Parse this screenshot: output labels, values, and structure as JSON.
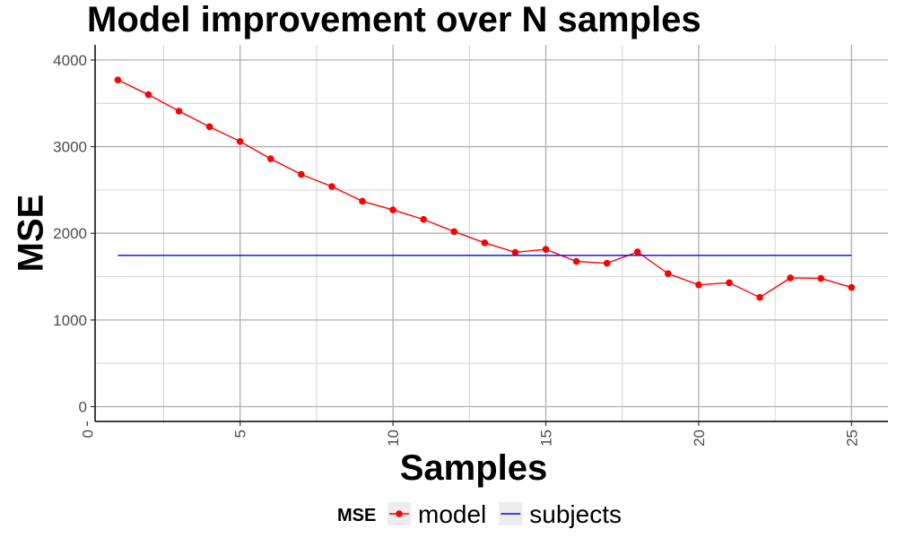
{
  "chart_data": {
    "type": "line",
    "title": "Model improvement over N samples",
    "xlabel": "Samples",
    "ylabel": "MSE",
    "xlim": [
      0,
      26
    ],
    "ylim": [
      -150,
      4200
    ],
    "x_ticks": [
      0,
      5,
      10,
      15,
      20,
      25
    ],
    "y_ticks": [
      0,
      1000,
      2000,
      3000,
      4000
    ],
    "grid": true,
    "legend": {
      "title": "MSE",
      "position": "bottom"
    },
    "x": [
      1,
      2,
      3,
      4,
      5,
      6,
      7,
      8,
      9,
      10,
      11,
      12,
      13,
      14,
      15,
      16,
      17,
      18,
      19,
      20,
      21,
      22,
      23,
      24,
      25
    ],
    "series": [
      {
        "name": "model",
        "color": "#ff0000",
        "markers": true,
        "values": [
          3770,
          3600,
          3410,
          3230,
          3060,
          2860,
          2680,
          2540,
          2370,
          2270,
          2160,
          2020,
          1890,
          1780,
          1815,
          1675,
          1655,
          1785,
          1535,
          1405,
          1430,
          1260,
          1485,
          1480,
          1375
        ]
      },
      {
        "name": "subjects",
        "color": "#0000ff",
        "markers": false,
        "values": [
          1745,
          1745,
          1745,
          1745,
          1745,
          1745,
          1745,
          1745,
          1745,
          1745,
          1745,
          1745,
          1745,
          1745,
          1745,
          1745,
          1745,
          1745,
          1745,
          1745,
          1745,
          1745,
          1745,
          1745,
          1745
        ]
      }
    ]
  }
}
